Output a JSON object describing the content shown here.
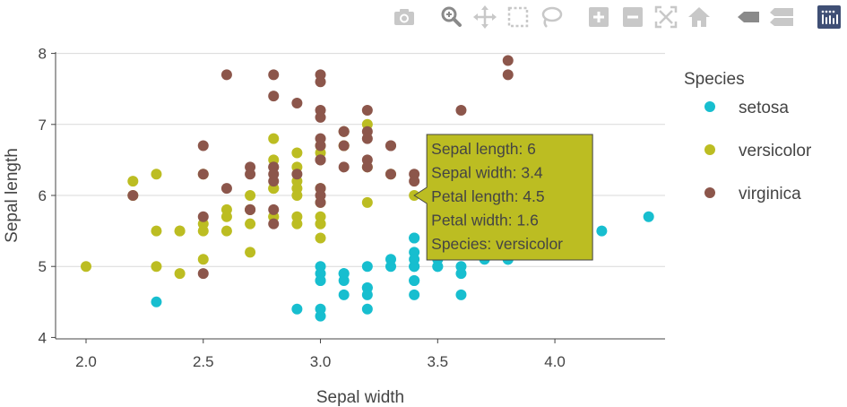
{
  "chart_data": {
    "type": "scatter",
    "title": "",
    "xlabel": "Sepal width",
    "ylabel": "Sepal length",
    "xlim": [
      1.87,
      4.47
    ],
    "ylim": [
      3.98,
      8.02
    ],
    "xticks": [
      "2.0",
      "2.5",
      "3.0",
      "3.5",
      "4.0"
    ],
    "xtick_values": [
      2.0,
      2.5,
      3.0,
      3.5,
      4.0
    ],
    "yticks": [
      "4",
      "5",
      "6",
      "7",
      "8"
    ],
    "ytick_values": [
      4,
      5,
      6,
      7,
      8
    ],
    "grid": "horizontal",
    "legend": {
      "title": "Species",
      "placement": "right"
    },
    "series": [
      {
        "name": "setosa",
        "color": "#17becf",
        "x": [
          3.5,
          3.0,
          3.2,
          3.1,
          3.6,
          3.9,
          3.4,
          3.4,
          2.9,
          3.1,
          3.7,
          3.4,
          3.0,
          3.0,
          4.0,
          4.4,
          3.9,
          3.5,
          3.8,
          3.8,
          3.4,
          3.7,
          3.6,
          3.3,
          3.4,
          3.0,
          3.4,
          3.5,
          3.4,
          3.2,
          3.1,
          3.4,
          4.1,
          4.2,
          3.1,
          3.2,
          3.5,
          3.6,
          3.0,
          3.4,
          3.5,
          2.3,
          3.2,
          3.5,
          3.8,
          3.0,
          3.8,
          3.2,
          3.7,
          3.3
        ],
        "y": [
          5.1,
          4.9,
          4.7,
          4.6,
          5.0,
          5.4,
          4.6,
          5.0,
          4.4,
          4.9,
          5.4,
          4.8,
          4.8,
          4.3,
          5.8,
          5.7,
          5.4,
          5.1,
          5.7,
          5.1,
          5.4,
          5.1,
          4.6,
          5.1,
          4.8,
          5.0,
          5.0,
          5.2,
          5.2,
          4.7,
          4.8,
          5.4,
          5.2,
          5.5,
          4.9,
          5.0,
          5.5,
          4.9,
          4.4,
          5.1,
          5.0,
          4.5,
          4.4,
          5.0,
          5.1,
          4.8,
          5.1,
          4.6,
          5.3,
          5.0
        ]
      },
      {
        "name": "versicolor",
        "color": "#bcbd22",
        "x": [
          3.2,
          3.2,
          3.1,
          2.3,
          2.8,
          2.8,
          3.3,
          2.4,
          2.9,
          2.7,
          2.0,
          3.0,
          2.2,
          2.9,
          2.9,
          3.1,
          3.0,
          2.7,
          2.2,
          2.5,
          3.2,
          2.8,
          2.5,
          2.8,
          2.9,
          3.0,
          2.8,
          3.0,
          2.9,
          2.6,
          2.4,
          2.4,
          2.7,
          2.7,
          3.0,
          3.4,
          3.1,
          2.3,
          3.0,
          2.5,
          2.6,
          3.0,
          2.6,
          2.3,
          2.7,
          3.0,
          2.9,
          2.9,
          2.5,
          2.8
        ],
        "y": [
          7.0,
          6.4,
          6.9,
          5.5,
          6.5,
          5.7,
          6.3,
          4.9,
          6.6,
          5.2,
          5.0,
          5.9,
          6.0,
          6.1,
          5.6,
          6.7,
          5.6,
          5.8,
          6.2,
          5.6,
          5.9,
          6.1,
          6.3,
          6.1,
          6.4,
          6.6,
          6.8,
          6.7,
          6.0,
          5.7,
          5.5,
          5.5,
          5.8,
          6.0,
          5.4,
          6.0,
          6.7,
          6.3,
          5.6,
          5.5,
          5.5,
          6.1,
          5.8,
          5.0,
          5.6,
          5.7,
          5.7,
          6.2,
          5.1,
          5.7
        ]
      },
      {
        "name": "virginica",
        "color": "#8c564b",
        "x": [
          3.3,
          2.7,
          3.0,
          2.9,
          3.0,
          3.0,
          2.5,
          2.9,
          2.5,
          3.6,
          3.2,
          2.7,
          3.0,
          2.5,
          2.8,
          3.2,
          3.0,
          3.8,
          2.6,
          2.2,
          3.2,
          2.8,
          2.8,
          2.7,
          3.3,
          3.2,
          2.8,
          3.0,
          2.8,
          3.0,
          2.8,
          3.8,
          2.8,
          2.8,
          2.6,
          3.0,
          3.4,
          3.1,
          3.0,
          3.1,
          3.1,
          3.1,
          2.7,
          3.2,
          3.3,
          3.0,
          2.5,
          3.0,
          3.4,
          3.0
        ],
        "y": [
          6.3,
          5.8,
          7.1,
          6.3,
          6.5,
          7.6,
          4.9,
          7.3,
          6.7,
          7.2,
          6.5,
          6.4,
          6.8,
          5.7,
          5.8,
          6.4,
          6.5,
          7.7,
          7.7,
          6.0,
          6.9,
          5.6,
          7.7,
          6.3,
          6.7,
          7.2,
          6.2,
          6.1,
          6.4,
          7.2,
          7.4,
          7.9,
          6.4,
          6.3,
          6.1,
          7.7,
          6.3,
          6.4,
          6.0,
          6.9,
          6.7,
          6.9,
          5.8,
          6.8,
          6.7,
          6.7,
          6.3,
          6.5,
          6.2,
          5.9
        ]
      }
    ],
    "tooltip": {
      "lines": [
        "Sepal length: 6",
        "Sepal width: 3.4",
        "Petal length: 4.5",
        "Petal width: 1.6",
        "Species: versicolor"
      ],
      "x": 3.4,
      "y": 6.0,
      "color": "#bcbd22"
    }
  },
  "toolbar": {
    "buttons": [
      {
        "name": "camera-icon"
      },
      {
        "name": "zoom-icon",
        "active": true
      },
      {
        "name": "pan-icon"
      },
      {
        "name": "box-select-icon"
      },
      {
        "name": "lasso-select-icon"
      },
      {
        "name": "zoom-in-icon"
      },
      {
        "name": "zoom-out-icon"
      },
      {
        "name": "autoscale-icon"
      },
      {
        "name": "reset-axes-icon"
      },
      {
        "name": "hover-closest-icon"
      },
      {
        "name": "hover-compare-icon"
      },
      {
        "name": "plotly-logo-icon"
      }
    ],
    "icon_color": "#c8c8c8",
    "active_color": "#8a8a8a",
    "logo_color": "#3f4f75"
  }
}
